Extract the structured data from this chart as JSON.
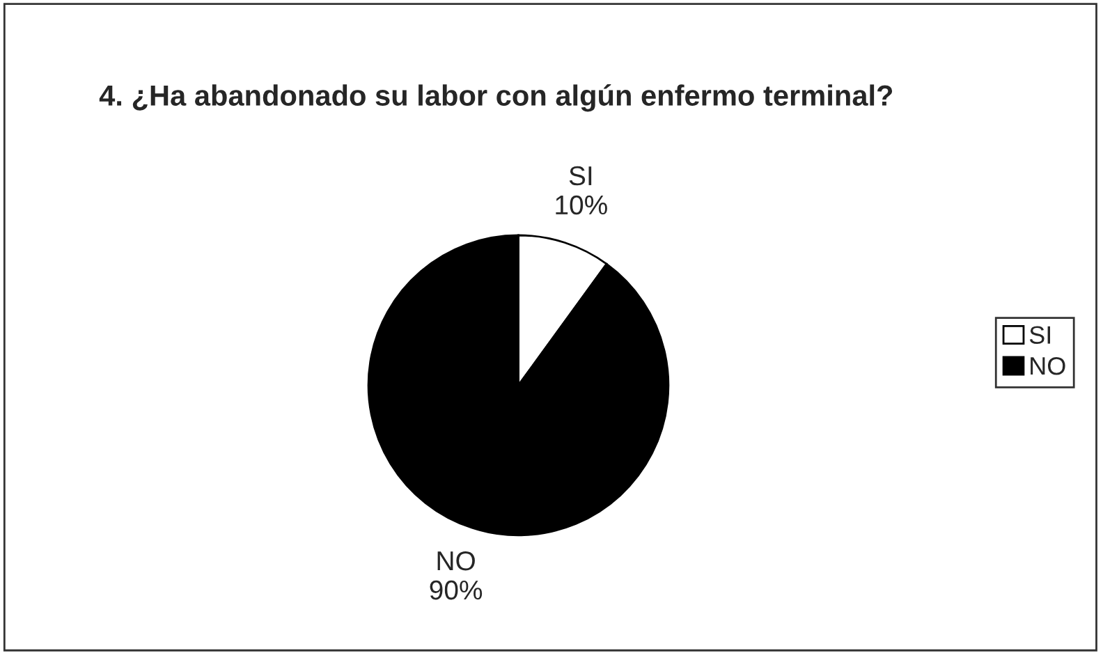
{
  "chart_data": {
    "type": "pie",
    "title": "4. ¿Ha abandonado su labor con algún enfermo terminal?",
    "categories": [
      "SI",
      "NO"
    ],
    "values": [
      10,
      90
    ],
    "value_labels": [
      "10%",
      "90%"
    ],
    "colors": [
      "#ffffff",
      "#000000"
    ],
    "legend": "right"
  }
}
